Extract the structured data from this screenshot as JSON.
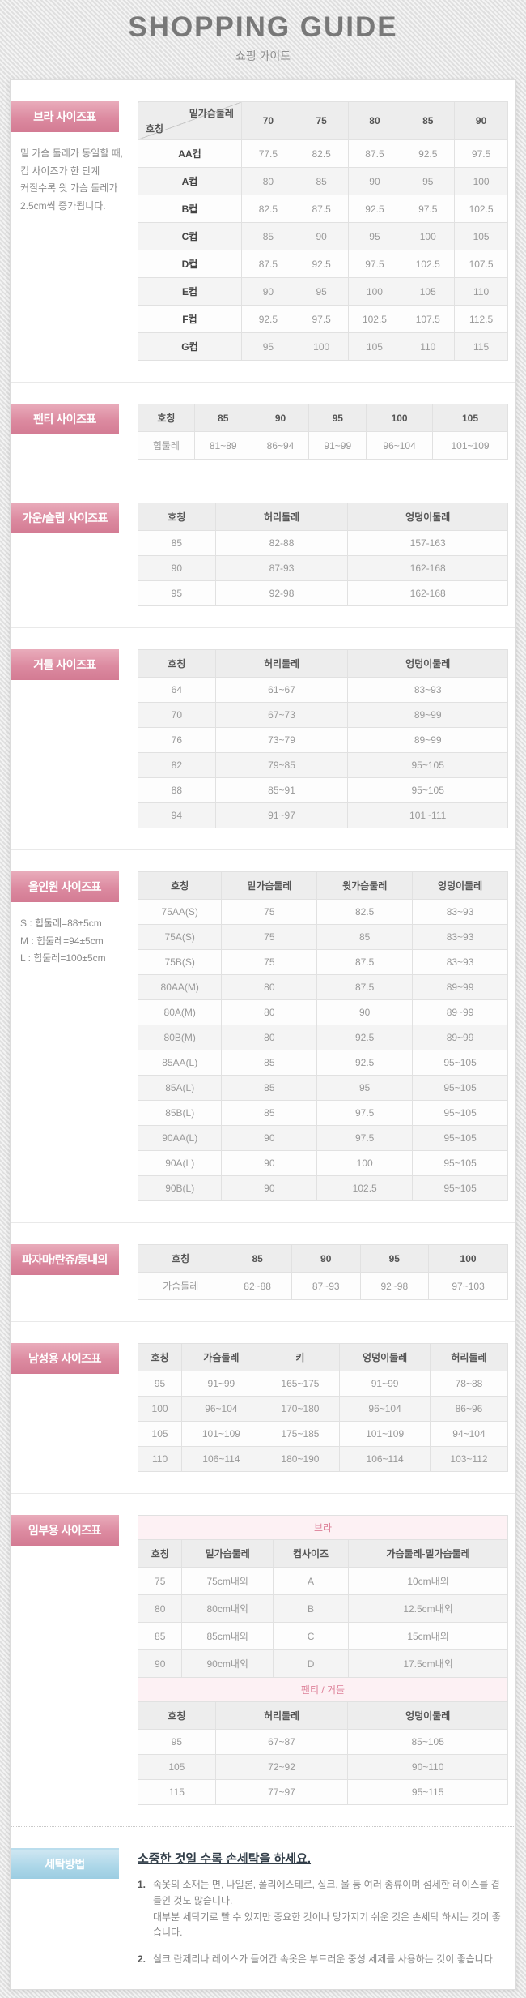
{
  "page": {
    "title": "SHOPPING GUIDE",
    "subtitle": "쇼핑 가이드"
  },
  "colors": {
    "accent_pink": "#d8809a",
    "accent_blue": "#a9d4e5",
    "band_pink_bg": "#fdf1f4",
    "band_pink_text": "#dd8098"
  },
  "sections": {
    "bra": {
      "label": "브라 사이즈표",
      "note": [
        "밑 가슴 둘레가 동일할 때,",
        "컵 사이즈가 한 단계",
        "커질수록 윗 가슴 둘레가",
        "2.5cm씩 증가됩니다."
      ],
      "table": {
        "corner_top": "밑가슴둘레",
        "corner_bottom": "호칭",
        "columns": [
          "70",
          "75",
          "80",
          "85",
          "90"
        ],
        "first_col_header": true,
        "rows": [
          [
            "AA컵",
            "77.5",
            "82.5",
            "87.5",
            "92.5",
            "97.5"
          ],
          [
            "A컵",
            "80",
            "85",
            "90",
            "95",
            "100"
          ],
          [
            "B컵",
            "82.5",
            "87.5",
            "92.5",
            "97.5",
            "102.5"
          ],
          [
            "C컵",
            "85",
            "90",
            "95",
            "100",
            "105"
          ],
          [
            "D컵",
            "87.5",
            "92.5",
            "97.5",
            "102.5",
            "107.5"
          ],
          [
            "E컵",
            "90",
            "95",
            "100",
            "105",
            "110"
          ],
          [
            "F컵",
            "92.5",
            "97.5",
            "102.5",
            "107.5",
            "112.5"
          ],
          [
            "G컵",
            "95",
            "100",
            "105",
            "110",
            "115"
          ]
        ]
      }
    },
    "panty": {
      "label": "팬티 사이즈표",
      "table": {
        "columns": [
          "호칭",
          "85",
          "90",
          "95",
          "100",
          "105"
        ],
        "rows": [
          [
            "힙둘레",
            "81~89",
            "86~94",
            "91~99",
            "96~104",
            "101~109"
          ]
        ]
      }
    },
    "gown": {
      "label": "가운/슬립 사이즈표",
      "table": {
        "columns": [
          "호칭",
          "허리둘레",
          "엉덩이둘레"
        ],
        "rows": [
          [
            "85",
            "82-88",
            "157-163"
          ],
          [
            "90",
            "87-93",
            "162-168"
          ],
          [
            "95",
            "92-98",
            "162-168"
          ]
        ]
      }
    },
    "girdle": {
      "label": "거들 사이즈표",
      "table": {
        "columns": [
          "호칭",
          "허리둘레",
          "엉덩이둘레"
        ],
        "rows": [
          [
            "64",
            "61~67",
            "83~93"
          ],
          [
            "70",
            "67~73",
            "89~99"
          ],
          [
            "76",
            "73~79",
            "89~99"
          ],
          [
            "82",
            "79~85",
            "95~105"
          ],
          [
            "88",
            "85~91",
            "95~105"
          ],
          [
            "94",
            "91~97",
            "101~111"
          ]
        ]
      }
    },
    "allinone": {
      "label": "올인원 사이즈표",
      "note": [
        "S : 힙둘레=88±5cm",
        "M : 힙둘레=94±5cm",
        "L : 힙둘레=100±5cm"
      ],
      "table": {
        "columns": [
          "호칭",
          "밑가슴둘레",
          "윗가슴둘레",
          "엉덩이둘레"
        ],
        "rows": [
          [
            "75AA(S)",
            "75",
            "82.5",
            "83~93"
          ],
          [
            "75A(S)",
            "75",
            "85",
            "83~93"
          ],
          [
            "75B(S)",
            "75",
            "87.5",
            "83~93"
          ],
          [
            "80AA(M)",
            "80",
            "87.5",
            "89~99"
          ],
          [
            "80A(M)",
            "80",
            "90",
            "89~99"
          ],
          [
            "80B(M)",
            "80",
            "92.5",
            "89~99"
          ],
          [
            "85AA(L)",
            "85",
            "92.5",
            "95~105"
          ],
          [
            "85A(L)",
            "85",
            "95",
            "95~105"
          ],
          [
            "85B(L)",
            "85",
            "97.5",
            "95~105"
          ],
          [
            "90AA(L)",
            "90",
            "97.5",
            "95~105"
          ],
          [
            "90A(L)",
            "90",
            "100",
            "95~105"
          ],
          [
            "90B(L)",
            "90",
            "102.5",
            "95~105"
          ]
        ]
      }
    },
    "pajama": {
      "label": "파자마/란쥬/동내의",
      "table": {
        "columns": [
          "호칭",
          "85",
          "90",
          "95",
          "100"
        ],
        "rows": [
          [
            "가슴둘레",
            "82~88",
            "87~93",
            "92~98",
            "97~103"
          ]
        ]
      }
    },
    "mens": {
      "label": "남성용 사이즈표",
      "table": {
        "columns": [
          "호칭",
          "가슴둘레",
          "키",
          "엉덩이둘레",
          "허리둘레"
        ],
        "rows": [
          [
            "95",
            "91~99",
            "165~175",
            "91~99",
            "78~88"
          ],
          [
            "100",
            "96~104",
            "170~180",
            "96~104",
            "86~96"
          ],
          [
            "105",
            "101~109",
            "175~185",
            "101~109",
            "94~104"
          ],
          [
            "110",
            "106~114",
            "180~190",
            "106~114",
            "103~112"
          ]
        ]
      }
    },
    "maternity": {
      "label": "임부용 사이즈표",
      "segments": [
        {
          "band": "브라",
          "columns": [
            "호칭",
            "밑가슴둘레",
            "컵사이즈",
            "가슴둘레-밑가슴둘레"
          ],
          "rows": [
            [
              "75",
              "75cm내외",
              "A",
              "10cm내외"
            ],
            [
              "80",
              "80cm내외",
              "B",
              "12.5cm내외"
            ],
            [
              "85",
              "85cm내외",
              "C",
              "15cm내외"
            ],
            [
              "90",
              "90cm내외",
              "D",
              "17.5cm내외"
            ]
          ]
        },
        {
          "band": "팬티 / 거들",
          "columns": [
            "호칭",
            "허리둘레",
            "엉덩이둘레"
          ],
          "rows": [
            [
              "95",
              "67~87",
              "85~105"
            ],
            [
              "105",
              "72~92",
              "90~110"
            ],
            [
              "115",
              "77~97",
              "95~115"
            ]
          ]
        }
      ]
    },
    "washing": {
      "label": "세탁방법",
      "title": "소중한 것일 수록 손세탁을 하세요.",
      "items": [
        {
          "num": "1.",
          "lines": [
            "속옷의 소재는 면, 나일론, 폴리에스테르, 실크, 울 등 여러 종류이며 섬세한 레이스를 곁들인 것도 많습니다.",
            "대부분 세탁기로 빨 수 있지만 중요한 것이나 망가지기 쉬운 것은 손세탁 하시는 것이 좋습니다."
          ]
        },
        {
          "num": "2.",
          "lines": [
            "실크 란제리나 레이스가 들어간 속옷은 부드러운 중성 세제를 사용하는 것이 좋습니다."
          ]
        }
      ]
    }
  }
}
